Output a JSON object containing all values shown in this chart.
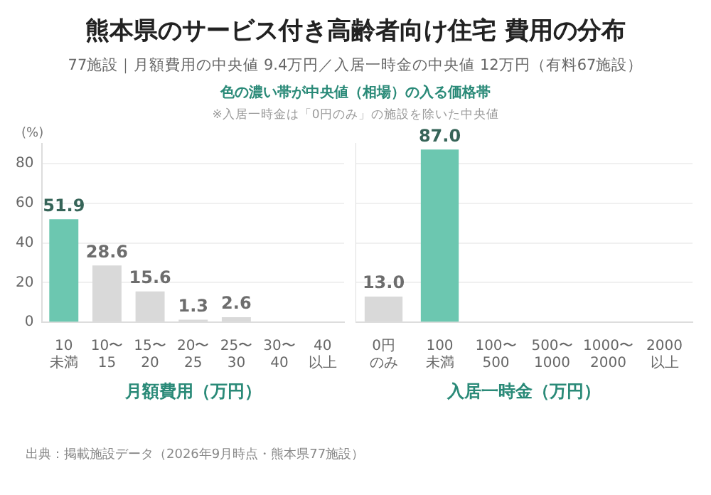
{
  "chart_data": [
    {
      "type": "bar",
      "title": "熊本県のサービス付き高齢者向け住宅 費用の分布",
      "subtitle": "77施設｜月額費用の中央値 9.4万円／入居一時金の中央値 12万円（有料67施設）",
      "annotations": [
        "色の濃い帯が中央値（相場）の入る価格帯",
        "※入居一時金は「0円のみ」の施設を除いた中央値",
        "出典：掲載施設データ（2026年9月時点・熊本県77施設）"
      ],
      "categories": [
        "10未満",
        "10〜15",
        "15〜20",
        "20〜25",
        "25〜30",
        "30〜40",
        "40以上"
      ],
      "values": [
        51.9,
        28.6,
        15.6,
        1.3,
        2.6,
        0,
        0
      ],
      "colors": [
        "#6cc7b0",
        "#d9d9d9",
        "#d9d9d9",
        "#d9d9d9",
        "#d9d9d9",
        "#d9d9d9",
        "#d9d9d9"
      ],
      "value_labels": [
        "51.9",
        "28.6",
        "15.6",
        "1.3",
        "2.6",
        null,
        null
      ],
      "xlabel": "月額費用（万円）",
      "ylabel": "(%)",
      "ylim": [
        0,
        90
      ],
      "yticks": [
        0,
        20,
        40,
        60,
        80
      ],
      "grid": "y"
    },
    {
      "type": "bar",
      "categories": [
        "0円のみ",
        "100未満",
        "100〜500",
        "500〜1000",
        "1000〜2000",
        "2000以上"
      ],
      "values": [
        13.0,
        87.0,
        0,
        0,
        0,
        0
      ],
      "colors": [
        "#d9d9d9",
        "#6cc7b0",
        "#d9d9d9",
        "#d9d9d9",
        "#d9d9d9",
        "#d9d9d9"
      ],
      "value_labels": [
        "13.0",
        "87.0",
        null,
        null,
        null,
        null
      ],
      "xlabel": "入居一時金（万円）",
      "ylim": [
        0,
        90
      ],
      "yticks": [
        0,
        20,
        40,
        60,
        80
      ],
      "grid": "y",
      "tick_labels": "x"
    }
  ]
}
